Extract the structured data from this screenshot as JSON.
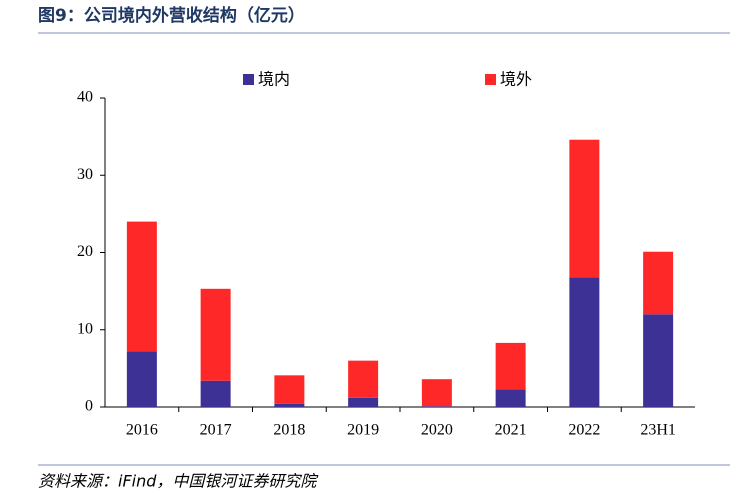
{
  "chart_data": {
    "type": "stacked_bar",
    "title": "图9：公司境内外营收结构（亿元）",
    "source": "资料来源：iFind，中国银河证券研究院",
    "categories": [
      "2016",
      "2017",
      "2018",
      "2019",
      "2020",
      "2021",
      "2022",
      "23H1"
    ],
    "series": [
      {
        "name": "境内",
        "color": "#3d3196",
        "values": [
          7.2,
          3.4,
          0.4,
          1.2,
          0.1,
          2.3,
          16.8,
          12.0
        ]
      },
      {
        "name": "境外",
        "color": "#ff2828",
        "values": [
          16.8,
          11.9,
          3.7,
          4.8,
          3.5,
          6.0,
          17.8,
          8.1
        ]
      }
    ],
    "ylim": [
      0,
      40
    ],
    "yticks": [
      0,
      10,
      20,
      30,
      40
    ],
    "legend": "top"
  }
}
